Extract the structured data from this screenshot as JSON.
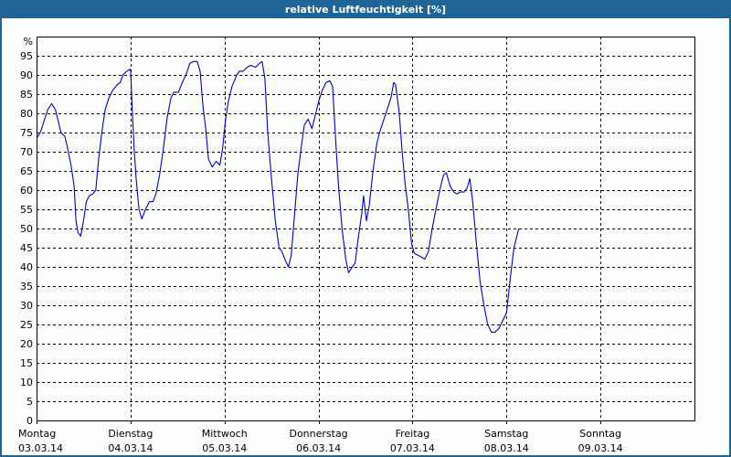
{
  "window": {
    "title": "relative Luftfeuchtigkeit [%]"
  },
  "colors": {
    "titlebar": "#1e6496",
    "background": "#fcfefc",
    "series_line": "#0000c8",
    "grid": "#000000",
    "axis": "#000000"
  },
  "chart_data": {
    "type": "line",
    "title": "relative Luftfeuchtigkeit [%]",
    "xlabel": "",
    "ylabel": "%",
    "ylim": [
      0,
      100
    ],
    "yticks": [
      0,
      5,
      10,
      15,
      20,
      25,
      30,
      35,
      40,
      45,
      50,
      55,
      60,
      65,
      70,
      75,
      80,
      85,
      90,
      95
    ],
    "y_unit_label": "%",
    "grid": true,
    "legend": null,
    "x_days": [
      {
        "day": "Montag",
        "date": "03.03.14"
      },
      {
        "day": "Dienstag",
        "date": "04.03.14"
      },
      {
        "day": "Mittwoch",
        "date": "05.03.14"
      },
      {
        "day": "Donnerstag",
        "date": "06.03.14"
      },
      {
        "day": "Freitag",
        "date": "07.03.14"
      },
      {
        "day": "Samstag",
        "date": "08.03.14"
      },
      {
        "day": "Sonntag",
        "date": "09.03.14"
      }
    ],
    "x_unit": "days since 03.03.14 00:00",
    "series": [
      {
        "name": "relative Luftfeuchtigkeit",
        "points": [
          [
            0.0,
            73.5
          ],
          [
            0.04,
            75
          ],
          [
            0.08,
            78
          ],
          [
            0.12,
            81
          ],
          [
            0.16,
            82.5
          ],
          [
            0.2,
            81
          ],
          [
            0.23,
            78
          ],
          [
            0.26,
            75
          ],
          [
            0.3,
            74
          ],
          [
            0.33,
            71
          ],
          [
            0.37,
            66
          ],
          [
            0.4,
            61
          ],
          [
            0.42,
            52
          ],
          [
            0.44,
            49
          ],
          [
            0.47,
            48
          ],
          [
            0.5,
            52
          ],
          [
            0.53,
            57
          ],
          [
            0.56,
            58.5
          ],
          [
            0.6,
            59
          ],
          [
            0.63,
            60
          ],
          [
            0.66,
            68
          ],
          [
            0.7,
            76
          ],
          [
            0.73,
            81
          ],
          [
            0.77,
            84
          ],
          [
            0.81,
            86
          ],
          [
            0.86,
            87.5
          ],
          [
            0.89,
            88
          ],
          [
            0.92,
            90
          ],
          [
            0.96,
            91
          ],
          [
            1.0,
            91.5
          ],
          [
            1.02,
            80
          ],
          [
            1.04,
            70
          ],
          [
            1.06,
            63
          ],
          [
            1.09,
            55
          ],
          [
            1.12,
            52.5
          ],
          [
            1.16,
            55
          ],
          [
            1.2,
            57
          ],
          [
            1.24,
            57
          ],
          [
            1.27,
            59
          ],
          [
            1.31,
            64
          ],
          [
            1.35,
            71
          ],
          [
            1.39,
            79
          ],
          [
            1.43,
            84
          ],
          [
            1.46,
            85.5
          ],
          [
            1.51,
            85.5
          ],
          [
            1.55,
            88
          ],
          [
            1.59,
            90
          ],
          [
            1.63,
            93
          ],
          [
            1.67,
            93.5
          ],
          [
            1.71,
            93.5
          ],
          [
            1.74,
            91
          ],
          [
            1.77,
            82
          ],
          [
            1.8,
            76
          ],
          [
            1.83,
            68
          ],
          [
            1.87,
            66
          ],
          [
            1.91,
            67.5
          ],
          [
            1.95,
            66.5
          ],
          [
            1.98,
            71
          ],
          [
            2.01,
            78
          ],
          [
            2.04,
            83
          ],
          [
            2.08,
            87
          ],
          [
            2.13,
            90
          ],
          [
            2.16,
            91
          ],
          [
            2.2,
            91
          ],
          [
            2.24,
            92
          ],
          [
            2.28,
            92.5
          ],
          [
            2.33,
            92
          ],
          [
            2.37,
            93
          ],
          [
            2.4,
            93.5
          ],
          [
            2.43,
            89
          ],
          [
            2.46,
            75
          ],
          [
            2.5,
            63
          ],
          [
            2.54,
            52
          ],
          [
            2.58,
            45
          ],
          [
            2.61,
            44
          ],
          [
            2.65,
            41.5
          ],
          [
            2.68,
            40
          ],
          [
            2.71,
            43
          ],
          [
            2.74,
            52
          ],
          [
            2.78,
            64
          ],
          [
            2.82,
            72
          ],
          [
            2.85,
            77
          ],
          [
            2.89,
            78.5
          ],
          [
            2.93,
            76
          ],
          [
            2.96,
            79
          ],
          [
            3.0,
            83
          ],
          [
            3.04,
            86
          ],
          [
            3.08,
            88
          ],
          [
            3.12,
            88.5
          ],
          [
            3.15,
            87
          ],
          [
            3.18,
            74
          ],
          [
            3.21,
            62
          ],
          [
            3.25,
            50
          ],
          [
            3.29,
            42
          ],
          [
            3.32,
            38.5
          ],
          [
            3.36,
            40
          ],
          [
            3.39,
            41
          ],
          [
            3.42,
            47
          ],
          [
            3.46,
            54
          ],
          [
            3.48,
            58.5
          ],
          [
            3.51,
            52
          ],
          [
            3.54,
            56
          ],
          [
            3.58,
            65
          ],
          [
            3.62,
            72
          ],
          [
            3.65,
            75
          ],
          [
            3.69,
            78
          ],
          [
            3.73,
            81
          ],
          [
            3.77,
            84
          ],
          [
            3.8,
            88
          ],
          [
            3.82,
            87.5
          ],
          [
            3.86,
            80
          ],
          [
            3.89,
            70
          ],
          [
            3.92,
            62
          ],
          [
            3.96,
            54
          ],
          [
            3.99,
            46
          ],
          [
            4.02,
            43.5
          ],
          [
            4.06,
            43
          ],
          [
            4.1,
            42.5
          ],
          [
            4.13,
            42
          ],
          [
            4.17,
            44
          ],
          [
            4.21,
            50
          ],
          [
            4.25,
            55
          ],
          [
            4.29,
            60
          ],
          [
            4.33,
            64
          ],
          [
            4.36,
            64.5
          ],
          [
            4.4,
            61
          ],
          [
            4.44,
            59.5
          ],
          [
            4.47,
            59
          ],
          [
            4.51,
            59.5
          ],
          [
            4.55,
            59.5
          ],
          [
            4.58,
            60.5
          ],
          [
            4.61,
            63
          ],
          [
            4.64,
            57
          ],
          [
            4.68,
            46
          ],
          [
            4.72,
            36
          ],
          [
            4.76,
            30
          ],
          [
            4.8,
            25
          ],
          [
            4.84,
            23
          ],
          [
            4.88,
            23
          ],
          [
            4.92,
            24
          ],
          [
            4.96,
            26
          ],
          [
            5.0,
            28
          ],
          [
            5.04,
            37
          ],
          [
            5.08,
            45
          ],
          [
            5.13,
            50
          ]
        ]
      }
    ]
  }
}
